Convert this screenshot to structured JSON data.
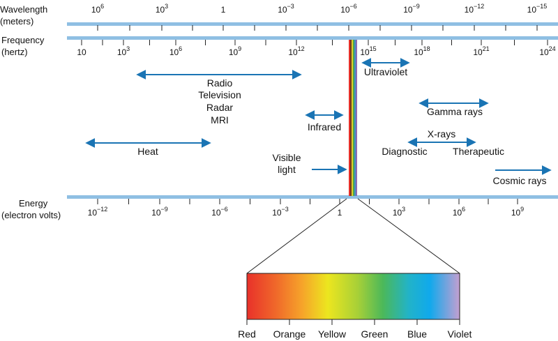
{
  "colors": {
    "axis_bar": "#8fbfe3",
    "arrow": "#1a74b4",
    "text": "#111111"
  },
  "axes": {
    "wavelength": {
      "title_lines": [
        "Wavelength",
        "(meters)"
      ],
      "ticks": [
        {
          "base": "10",
          "exp": "6"
        },
        {
          "base": "10",
          "exp": "3"
        },
        {
          "base": "1",
          "exp": ""
        },
        {
          "base": "10",
          "exp": "−3"
        },
        {
          "base": "10",
          "exp": "−6"
        },
        {
          "base": "10",
          "exp": "−9"
        },
        {
          "base": "10",
          "exp": "−12"
        },
        {
          "base": "10",
          "exp": "−15"
        }
      ]
    },
    "frequency": {
      "title_lines": [
        "Frequency",
        "(hertz)"
      ],
      "ticks": [
        {
          "base": "10",
          "exp": ""
        },
        {
          "base": "10",
          "exp": "3"
        },
        {
          "base": "10",
          "exp": "6"
        },
        {
          "base": "10",
          "exp": "9"
        },
        {
          "base": "10",
          "exp": "12"
        },
        {
          "base": "10",
          "exp": "15"
        },
        {
          "base": "10",
          "exp": "18"
        },
        {
          "base": "10",
          "exp": "21"
        },
        {
          "base": "10",
          "exp": "24"
        }
      ]
    },
    "energy": {
      "title_lines": [
        "Energy",
        "(electron volts)"
      ],
      "ticks": [
        {
          "base": "10",
          "exp": "−12"
        },
        {
          "base": "10",
          "exp": "−9"
        },
        {
          "base": "10",
          "exp": "−6"
        },
        {
          "base": "10",
          "exp": "−3"
        },
        {
          "base": "1",
          "exp": ""
        },
        {
          "base": "10",
          "exp": "3"
        },
        {
          "base": "10",
          "exp": "6"
        },
        {
          "base": "10",
          "exp": "9"
        }
      ]
    }
  },
  "regions": {
    "radio": {
      "lines": [
        "Radio",
        "Television",
        "Radar",
        "MRI"
      ]
    },
    "ultraviolet": {
      "label": "Ultraviolet"
    },
    "infrared": {
      "label": "Infrared"
    },
    "gamma": {
      "label": "Gamma rays"
    },
    "xrays": {
      "label": "X-rays",
      "left": "Diagnostic",
      "right": "Therapeutic"
    },
    "heat": {
      "label": "Heat"
    },
    "visible": {
      "lines": [
        "Visible",
        "light"
      ]
    },
    "cosmic": {
      "label": "Cosmic rays"
    }
  },
  "visible_spectrum": {
    "labels": [
      "Red",
      "Orange",
      "Yellow",
      "Green",
      "Blue",
      "Violet"
    ],
    "colors": [
      "#e8312a",
      "#f4852a",
      "#ece61f",
      "#7cc242",
      "#10a9ec",
      "#c49fd1"
    ]
  }
}
